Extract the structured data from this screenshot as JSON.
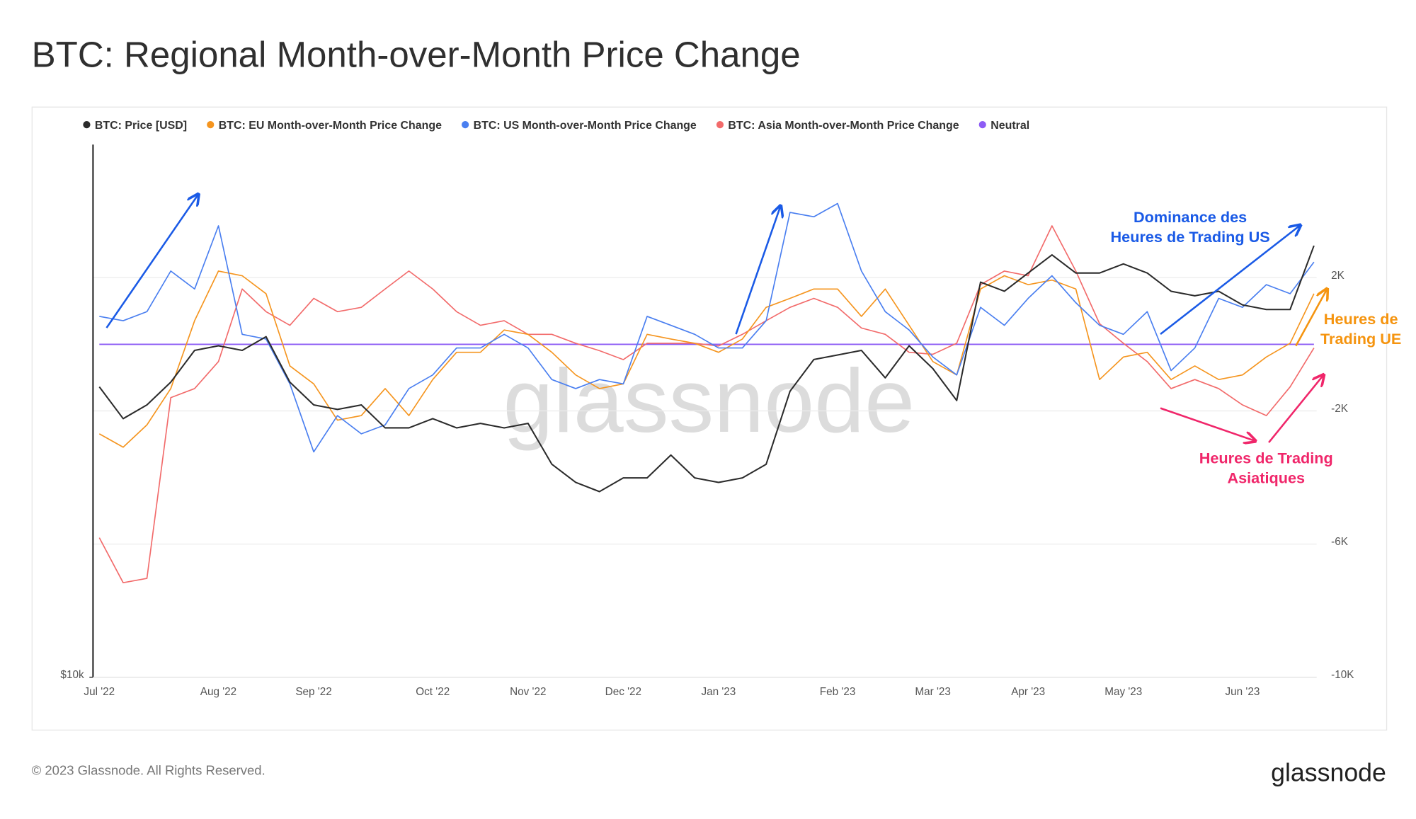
{
  "chart_data": {
    "type": "line",
    "title": "BTC: Regional Month-over-Month Price Change",
    "watermark": "glassnode",
    "footer": "© 2023 Glassnode. All Rights Reserved.",
    "logo": "glassnode",
    "categories": [
      "Jul '22",
      null,
      null,
      null,
      null,
      "Aug '22",
      null,
      null,
      null,
      "Sep '22",
      null,
      null,
      null,
      null,
      "Oct '22",
      null,
      null,
      null,
      "Nov '22",
      null,
      null,
      null,
      "Dec '22",
      null,
      null,
      null,
      "Jan '23",
      null,
      null,
      null,
      null,
      "Feb '23",
      null,
      null,
      null,
      "Mar '23",
      null,
      null,
      null,
      "Apr '23",
      null,
      null,
      null,
      "May '23",
      null,
      null,
      null,
      null,
      "Jun '23",
      null,
      null,
      null
    ],
    "yscale": "log",
    "ylim": [
      10000,
      39000
    ],
    "yticks": [
      {
        "value": 10000,
        "label": "$10k"
      }
    ],
    "y2lim": [
      -10000,
      6000
    ],
    "y2ticks": [
      {
        "value": 2000,
        "label": "2K"
      },
      {
        "value": -2000,
        "label": "-2K"
      },
      {
        "value": -6000,
        "label": "-6K"
      },
      {
        "value": -10000,
        "label": "-10K"
      }
    ],
    "grid": true,
    "series": [
      {
        "name": "BTC: Price [USD]",
        "color": "#2b2b2b",
        "axis": "y",
        "values": [
          21000,
          19360,
          20050,
          21250,
          23050,
          23320,
          23050,
          23870,
          21250,
          20050,
          19820,
          20050,
          18910,
          18910,
          19360,
          18910,
          19130,
          18910,
          19130,
          17230,
          16450,
          16070,
          16640,
          16640,
          17640,
          16640,
          16450,
          16640,
          17230,
          20760,
          22520,
          22780,
          23050,
          21490,
          23320,
          22000,
          20280,
          27440,
          26810,
          28090,
          29420,
          28090,
          28090,
          28750,
          28090,
          26810,
          26500,
          26810,
          25890,
          25590,
          25590,
          30120
        ]
      },
      {
        "name": "BTC: EU Month-over-Month Price Change",
        "color": "#f5951f",
        "axis": "y2",
        "values": [
          -2690,
          -3090,
          -2420,
          -1330,
          710,
          2200,
          2060,
          1520,
          -650,
          -1190,
          -2280,
          -2140,
          -1330,
          -2140,
          -1060,
          -240,
          -240,
          430,
          300,
          -240,
          -920,
          -1330,
          -1190,
          300,
          160,
          30,
          -240,
          160,
          1110,
          1380,
          1660,
          1660,
          840,
          1660,
          570,
          -520,
          -920,
          1660,
          2060,
          1790,
          1930,
          1660,
          -1060,
          -380,
          -240,
          -1060,
          -650,
          -1060,
          -920,
          -380,
          30,
          1520
        ]
      },
      {
        "name": "BTC: US Month-over-Month Price Change",
        "color": "#4a7ff0",
        "axis": "y2",
        "values": [
          840,
          710,
          980,
          2200,
          1660,
          3560,
          300,
          160,
          -1190,
          -3230,
          -2140,
          -2690,
          -2420,
          -1330,
          -920,
          -110,
          -110,
          300,
          -110,
          -1060,
          -1330,
          -1060,
          -1190,
          840,
          570,
          300,
          -110,
          -110,
          710,
          3960,
          3830,
          4230,
          2200,
          980,
          430,
          -380,
          -920,
          1110,
          570,
          1380,
          2060,
          1250,
          570,
          300,
          980,
          -790,
          -110,
          1380,
          1110,
          1790,
          1520,
          2470
        ]
      },
      {
        "name": "BTC: Asia Month-over-Month Price Change",
        "color": "#f26b6b",
        "axis": "y2",
        "values": [
          -5810,
          -7160,
          -7030,
          -1600,
          -1330,
          -520,
          1660,
          980,
          570,
          1380,
          980,
          1110,
          1660,
          2200,
          1660,
          980,
          570,
          710,
          300,
          300,
          30,
          -190,
          -460,
          30,
          30,
          30,
          -50,
          300,
          710,
          1110,
          1380,
          1110,
          490,
          300,
          -240,
          -300,
          30,
          1790,
          2200,
          2060,
          3560,
          2200,
          620,
          30,
          -520,
          -1330,
          -1060,
          -1330,
          -1820,
          -2140,
          -1280,
          -110
        ]
      }
    ],
    "reference_lines": [
      {
        "name": "Neutral",
        "value": 0,
        "color": "#8d5cf5",
        "axis": "y2"
      }
    ],
    "annotations": [
      {
        "lines": [
          "Dominance des",
          "Heures de Trading US"
        ],
        "color": "#1a5ae6"
      },
      {
        "lines": [
          "Heures de",
          "Trading UE"
        ],
        "color": "#f5940f"
      },
      {
        "lines": [
          "Heures de Trading",
          "Asiatiques"
        ],
        "color": "#f0266a"
      }
    ]
  }
}
